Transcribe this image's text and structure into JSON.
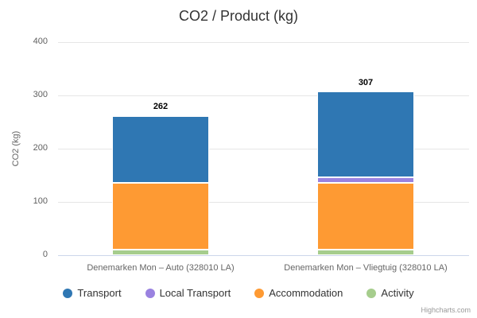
{
  "chart": {
    "credits": "Highcharts.com"
  },
  "chart_data": {
    "type": "bar",
    "variant": "stacked-column",
    "title": "CO2 / Product (kg)",
    "xlabel": "",
    "ylabel": "CO2 (kg)",
    "categories": [
      "Denemarken Mon – Auto (328010 LA)",
      "Denemarken Mon – Vliegtuig (328010 LA)"
    ],
    "series": [
      {
        "name": "Transport",
        "color": "#2f77b3",
        "values": [
          126,
          161
        ]
      },
      {
        "name": "Local Transport",
        "color": "#9a82e0",
        "values": [
          0,
          10
        ]
      },
      {
        "name": "Accommodation",
        "color": "#fe9a33",
        "values": [
          126,
          126
        ]
      },
      {
        "name": "Activity",
        "color": "#a6cd8d",
        "values": [
          10,
          10
        ]
      }
    ],
    "stack_totals": [
      262,
      307
    ],
    "yticks": [
      0,
      100,
      200,
      300,
      400
    ],
    "ylim": [
      0,
      400
    ],
    "grid": true,
    "legend_position": "bottom",
    "colors": {
      "title_text": "#333333",
      "axis_label_text": "#606060",
      "category_text": "#666666",
      "gridline": "#e6e6e6",
      "axis_line": "#ccd6eb",
      "legend_text": "#333333",
      "credits_text": "#999999"
    }
  }
}
